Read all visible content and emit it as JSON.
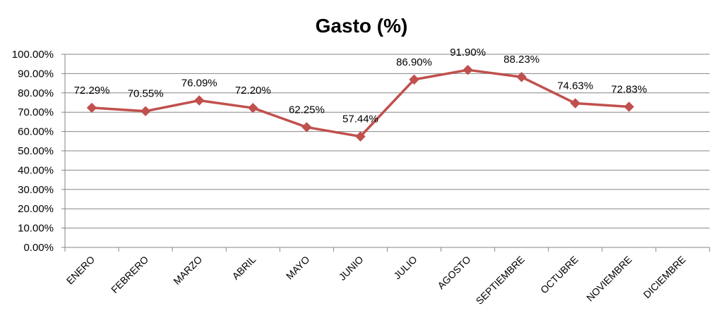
{
  "chart_data": {
    "type": "line",
    "title": "Gasto (%)",
    "categories": [
      "ENERO",
      "FEBRERO",
      "MARZO",
      "ABRIL",
      "MAYO",
      "JUNIO",
      "JULIO",
      "AGOSTO",
      "SEPTIEMBRE",
      "OCTUBRE",
      "NOVIEMBRE",
      "DICIEMBRE"
    ],
    "values": [
      72.29,
      70.55,
      76.09,
      72.2,
      62.25,
      57.44,
      86.9,
      91.9,
      88.23,
      74.63,
      72.83,
      null
    ],
    "data_labels": [
      "72.29%",
      "70.55%",
      "76.09%",
      "72.20%",
      "62.25%",
      "57.44%",
      "86.90%",
      "91.90%",
      "88.23%",
      "74.63%",
      "72.83%",
      ""
    ],
    "y_ticks": [
      "0.00%",
      "10.00%",
      "20.00%",
      "30.00%",
      "40.00%",
      "50.00%",
      "60.00%",
      "70.00%",
      "80.00%",
      "90.00%",
      "100.00%"
    ],
    "ylim": [
      0,
      100
    ],
    "grid": true,
    "legend": "none",
    "marker": "diamond",
    "series_color": "#C0504D"
  }
}
